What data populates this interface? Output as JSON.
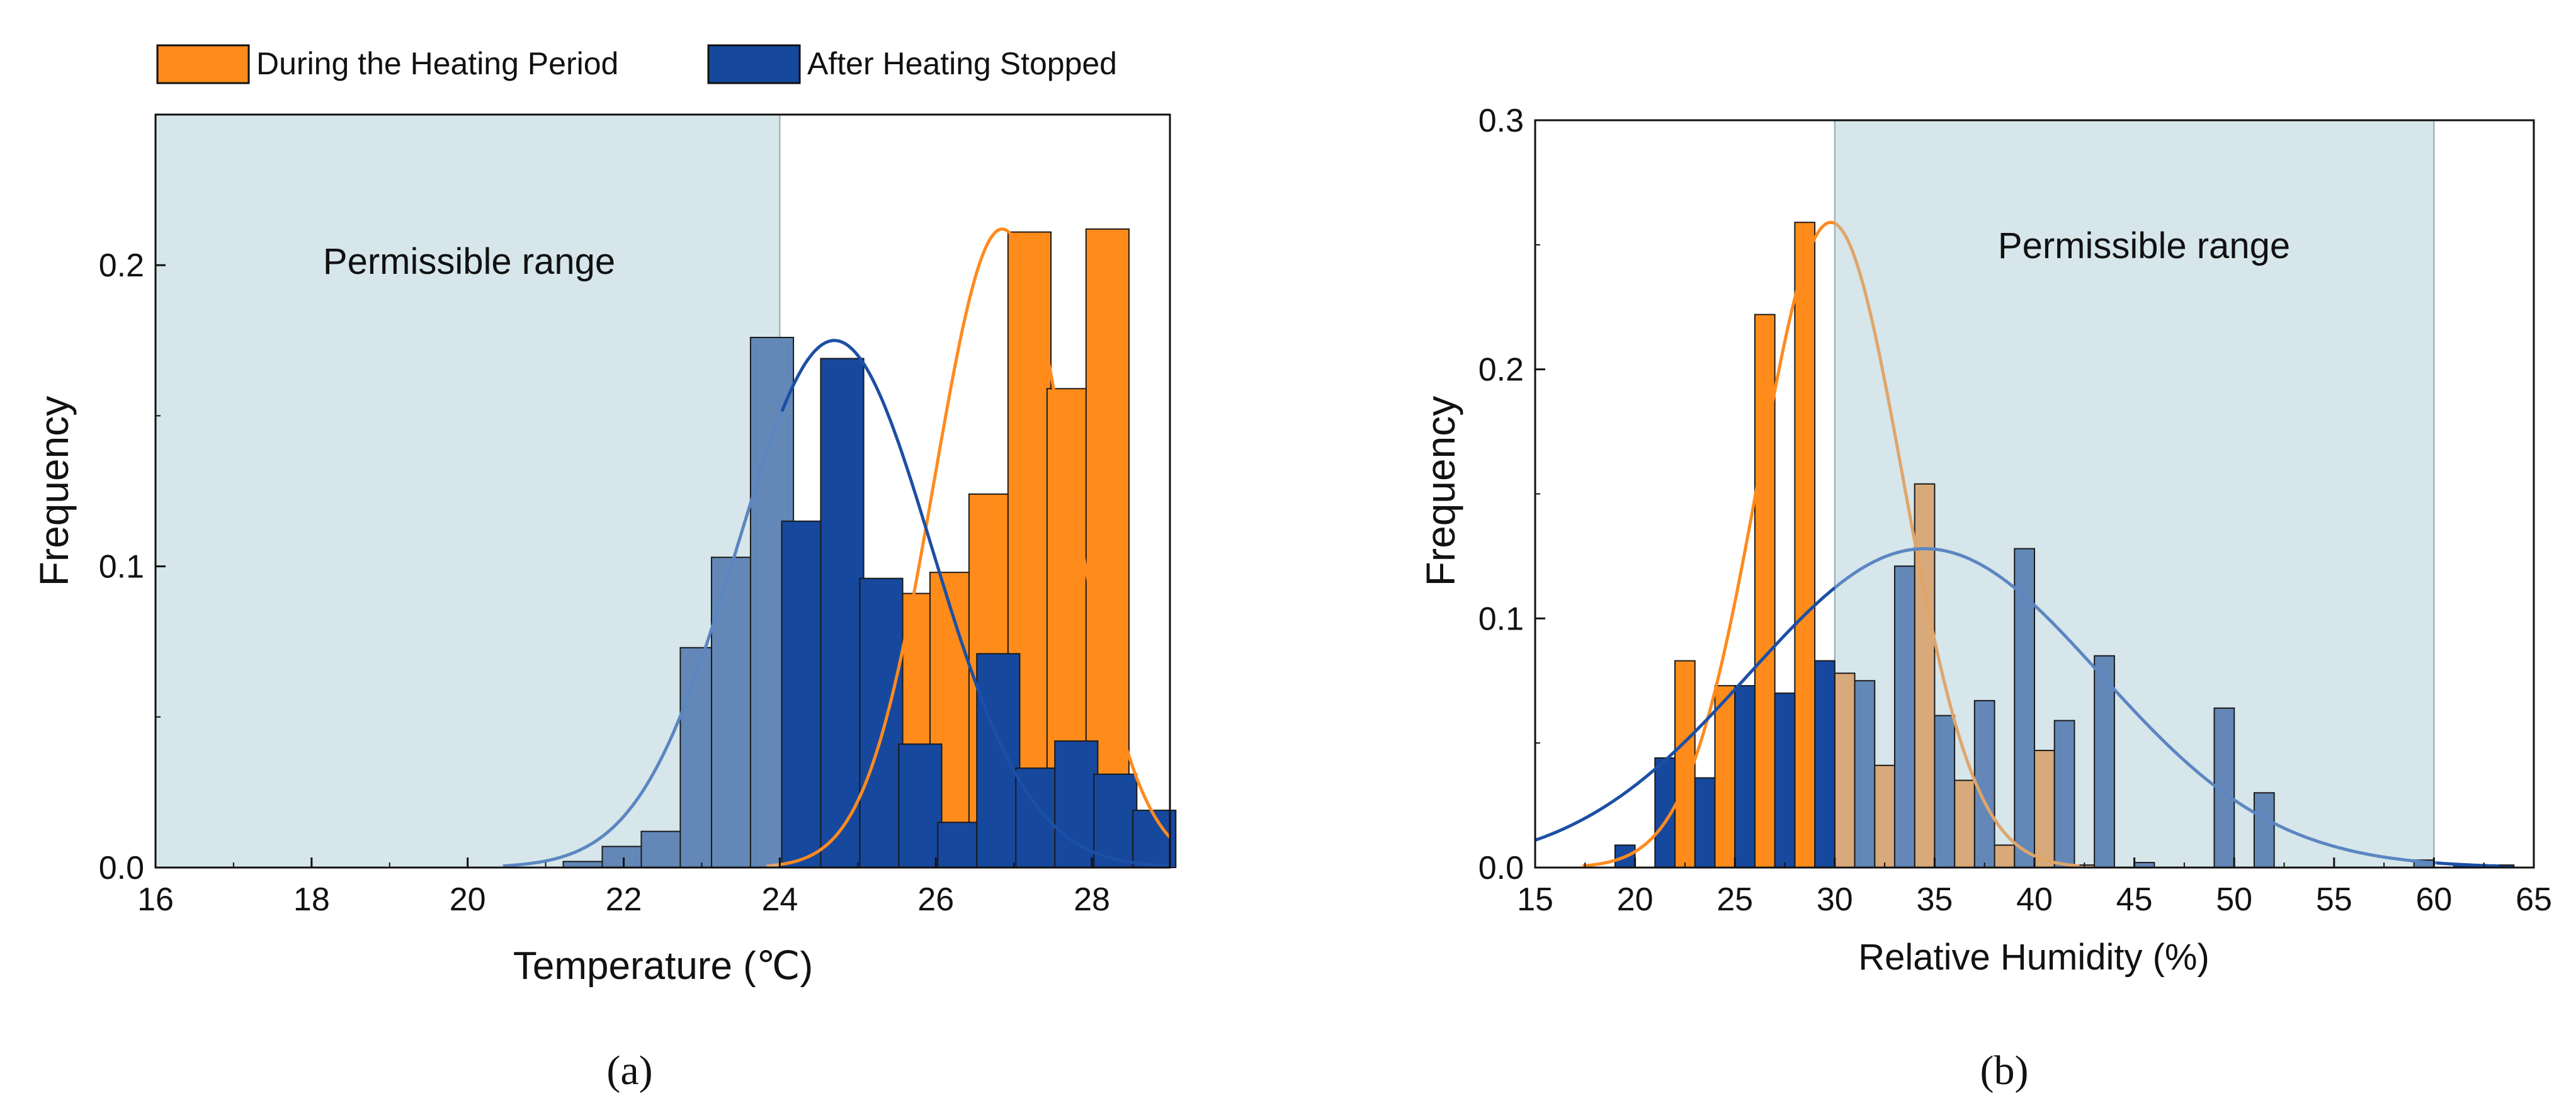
{
  "legend": [
    {
      "label": "During the Heating Period",
      "color": "#FF8C1A"
    },
    {
      "label": "After Heating Stopped",
      "color": "#16489E"
    }
  ],
  "colors": {
    "heating": "#FF8C1A",
    "stopped": "#16489E",
    "heating_shaded": "#D8A97A",
    "stopped_shaded": "#6388B7",
    "heating_curve": "#FF8A1E",
    "stopped_curve": "#1C4FA6",
    "heating_curve_shaded": "#E0A56A",
    "stopped_curve_shaded": "#5B86C2",
    "region": "#D6E6EA"
  },
  "chart_data": [
    {
      "type": "bar",
      "panel_label": "(a)",
      "title": "",
      "xlabel": "Temperature (℃)",
      "ylabel": "Frequency",
      "xlim": [
        16,
        29
      ],
      "ylim": [
        0,
        0.25
      ],
      "xticks": [
        16,
        18,
        20,
        22,
        24,
        26,
        28
      ],
      "yticks": [
        0.0,
        0.1,
        0.2
      ],
      "ytick_labels": [
        "0.0",
        "0.1",
        "0.2"
      ],
      "bin_width": 0.55,
      "annotation": "Permissible range",
      "permissible_range": [
        16,
        24
      ],
      "series": [
        {
          "name": "During the Heating Period",
          "bins": [
            23.5,
            25.2,
            25.7,
            26.2,
            26.7,
            27.2,
            27.7,
            28.2,
            28.7
          ],
          "values": [
            0.086,
            0.016,
            0.091,
            0.098,
            0.124,
            0.211,
            0.159,
            0.212,
            0.005
          ],
          "fit": {
            "type": "normal",
            "mean": 26.85,
            "sd": 0.87,
            "peak": 0.212
          }
        },
        {
          "name": "After Heating Stopped",
          "bins": [
            21.5,
            22.0,
            22.5,
            23.0,
            23.4,
            23.9,
            24.3,
            24.8,
            25.3,
            25.8,
            26.3,
            26.8,
            27.3,
            27.8,
            28.3,
            28.8
          ],
          "values": [
            0.002,
            0.007,
            0.012,
            0.073,
            0.103,
            0.176,
            0.115,
            0.169,
            0.096,
            0.041,
            0.015,
            0.071,
            0.033,
            0.042,
            0.031,
            0.019
          ],
          "fit": {
            "type": "normal",
            "mean": 24.7,
            "sd": 1.25,
            "peak": 0.175
          }
        }
      ]
    },
    {
      "type": "bar",
      "panel_label": "(b)",
      "title": "",
      "xlabel": "Relative Humidity (%)",
      "ylabel": "Frequency",
      "xlim": [
        15,
        65
      ],
      "ylim": [
        0,
        0.3
      ],
      "xticks": [
        15,
        20,
        25,
        30,
        35,
        40,
        45,
        50,
        55,
        60,
        65
      ],
      "yticks": [
        0.0,
        0.1,
        0.2,
        0.3
      ],
      "ytick_labels": [
        "0.0",
        "0.1",
        "0.2",
        "0.3"
      ],
      "bin_width": 1.0,
      "annotation": "Permissible range",
      "permissible_range": [
        30,
        60
      ],
      "series": [
        {
          "name": "During the Heating Period",
          "bins": [
            22.5,
            24.5,
            26.5,
            28.5,
            30.5,
            32.5,
            34.5,
            36.5,
            38.5,
            40.5,
            42.5
          ],
          "values": [
            0.083,
            0.073,
            0.222,
            0.259,
            0.078,
            0.041,
            0.154,
            0.035,
            0.009,
            0.047,
            0.001
          ],
          "fit": {
            "type": "normal",
            "mean": 29.8,
            "sd": 3.6,
            "peak": 0.259
          }
        },
        {
          "name": "After Heating Stopped",
          "bins": [
            19.5,
            21.5,
            23.5,
            25.5,
            27.5,
            29.5,
            31.5,
            33.5,
            35.5,
            37.5,
            39.5,
            41.5,
            43.5,
            45.5,
            49.5,
            51.5,
            59.5,
            61.5,
            63.5
          ],
          "values": [
            0.009,
            0.044,
            0.036,
            0.073,
            0.07,
            0.083,
            0.075,
            0.121,
            0.061,
            0.067,
            0.128,
            0.059,
            0.085,
            0.002,
            0.064,
            0.03,
            0.003,
            0.001,
            0.001
          ],
          "fit": {
            "type": "normal",
            "mean": 34.5,
            "sd": 8.8,
            "peak": 0.128
          }
        }
      ]
    }
  ]
}
